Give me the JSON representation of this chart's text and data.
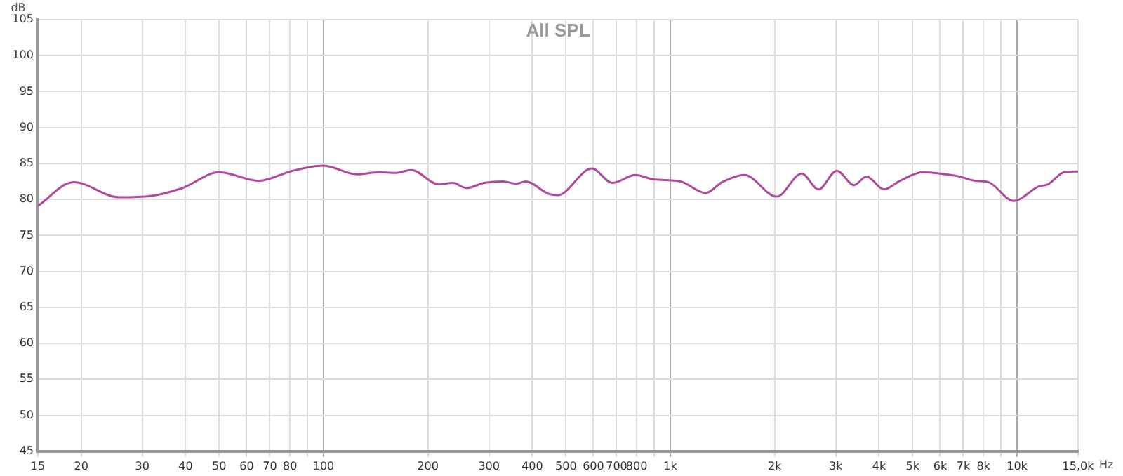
{
  "chart_data": {
    "type": "line",
    "title": "All SPL",
    "xlabel": "Hz",
    "ylabel": "dB",
    "log": "x",
    "grid": true,
    "legend": false,
    "marker": "none",
    "line_style": "solid",
    "xlim": [
      15,
      15000
    ],
    "ylim": [
      45,
      105
    ],
    "xticks": [
      15,
      20,
      30,
      40,
      50,
      60,
      70,
      80,
      {
        "value": 90,
        "label": null
      },
      100,
      200,
      300,
      400,
      500,
      600,
      700,
      800,
      {
        "value": 900,
        "label": null
      },
      {
        "value": 1000,
        "label": "1k"
      },
      {
        "value": 2000,
        "label": "2k"
      },
      {
        "value": 3000,
        "label": "3k"
      },
      {
        "value": 4000,
        "label": "4k"
      },
      {
        "value": 5000,
        "label": "5k"
      },
      {
        "value": 6000,
        "label": "6k"
      },
      {
        "value": 7000,
        "label": "7k"
      },
      {
        "value": 8000,
        "label": "8k"
      },
      {
        "value": 9000,
        "label": null
      },
      {
        "value": 10000,
        "label": "10k"
      },
      {
        "value": 15000,
        "label": "15,0k"
      }
    ],
    "yticks": [
      45,
      50,
      55,
      60,
      65,
      70,
      75,
      80,
      85,
      90,
      95,
      100,
      105
    ],
    "series": [
      {
        "color": "#b0489c",
        "x": [
          15,
          19,
          25.8,
          31.9,
          39.2,
          50,
          65,
          81.5,
          100,
          124.6,
          145,
          161,
          179,
          215,
          236,
          258,
          291,
          329,
          360,
          383,
          445,
          473,
          594,
          681,
          792,
          894,
          1070,
          1265,
          1409,
          1636,
          2027,
          2394,
          2676,
          3021,
          3388,
          3680,
          4131,
          4597,
          5346,
          6210,
          6800,
          7562,
          8280,
          9778,
          11540,
          12275,
          13680,
          15000
        ],
        "values": [
          79.1,
          82.4,
          80.3,
          80.5,
          81.6,
          83.8,
          82.6,
          84.0,
          84.7,
          83.5,
          83.8,
          83.7,
          84.1,
          82.1,
          82.3,
          81.6,
          82.3,
          82.5,
          82.2,
          82.5,
          80.8,
          80.6,
          84.3,
          82.3,
          83.4,
          82.8,
          82.5,
          80.9,
          82.4,
          83.4,
          80.4,
          83.6,
          81.4,
          84.0,
          82.0,
          83.2,
          81.4,
          82.6,
          83.8,
          83.5,
          83.2,
          82.6,
          82.4,
          79.8,
          81.8,
          82.1,
          83.8,
          83.9
        ]
      }
    ]
  }
}
